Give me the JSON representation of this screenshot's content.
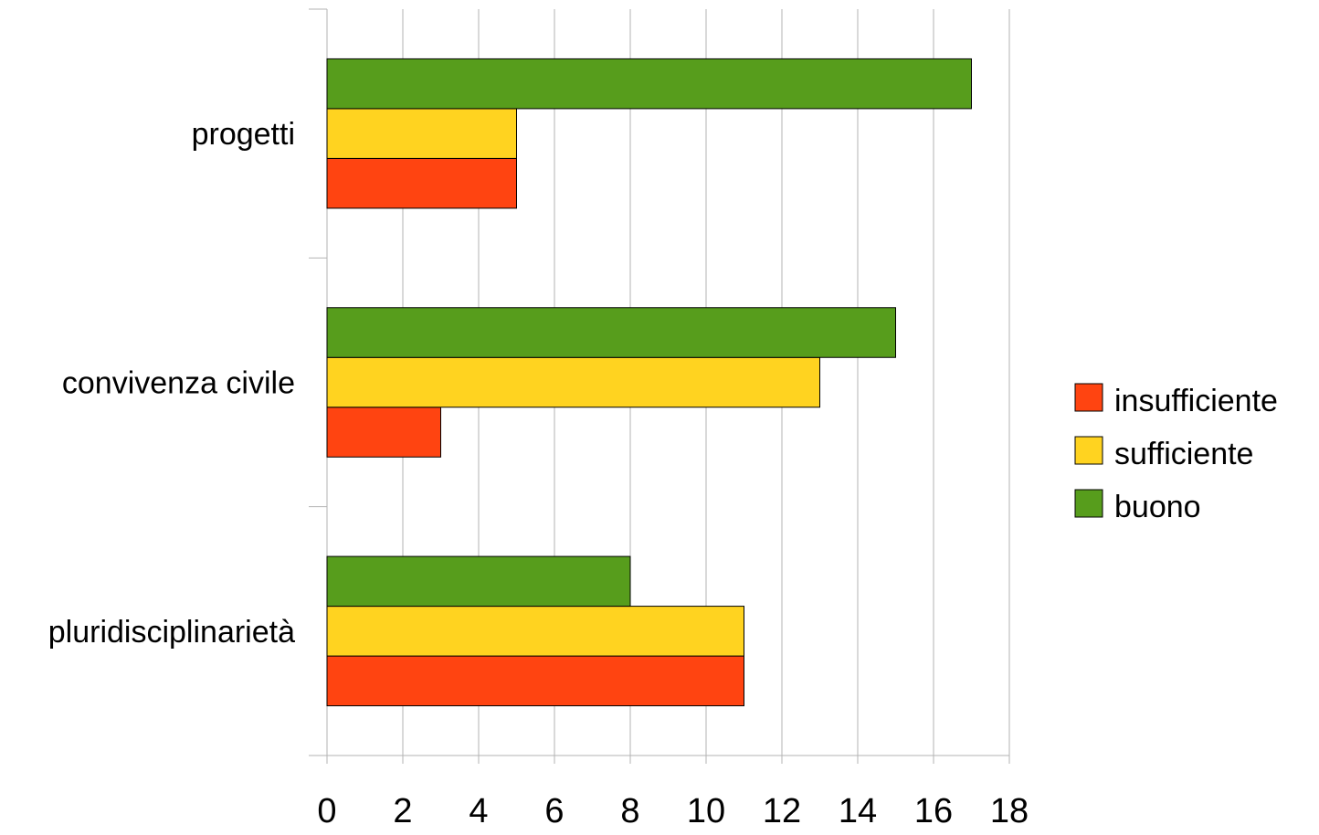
{
  "chart_data": {
    "type": "bar",
    "orientation": "horizontal",
    "title": "",
    "xlabel": "",
    "ylabel": "",
    "categories": [
      "pluridisciplinarietà",
      "convivenza civile",
      "progetti"
    ],
    "series": [
      {
        "name": "insufficiente",
        "color": "#ff4411",
        "values": [
          11,
          3,
          5
        ]
      },
      {
        "name": "sufficiente",
        "color": "#ffd320",
        "values": [
          11,
          13,
          5
        ]
      },
      {
        "name": "buono",
        "color": "#579d1c",
        "values": [
          8,
          15,
          17
        ]
      }
    ],
    "xlim": [
      0,
      18
    ],
    "xticks": [
      0,
      2,
      4,
      6,
      8,
      10,
      12,
      14,
      16,
      18
    ],
    "grid": true,
    "legend_position": "right"
  }
}
